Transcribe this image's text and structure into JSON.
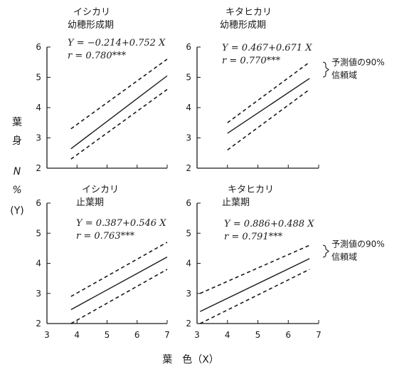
{
  "y_axis_label": [
    "葉",
    "身",
    "N",
    "%",
    "(Y)"
  ],
  "x_axis_label": "葉　色（X）",
  "chart_data": [
    {
      "type": "line",
      "title": [
        "イシカリ",
        "幼穂形成期"
      ],
      "equation": "Y = −0.214+0.752 X",
      "r": "r  = 0.780***",
      "bracket_note": "",
      "xlim": [
        3,
        7
      ],
      "ylim": [
        2,
        6
      ],
      "xticks": [
        "3",
        "4",
        "5",
        "6",
        "7"
      ],
      "yticks": [
        "2",
        "3",
        "4",
        "5",
        "6"
      ],
      "show_x_ticklabels": false,
      "x_range": [
        3.8,
        7.0
      ],
      "intercept": -0.214,
      "slope": 0.752,
      "band_upper": [
        [
          3.8,
          3.3
        ],
        [
          7.0,
          5.6
        ]
      ],
      "band_lower": [
        [
          3.8,
          2.3
        ],
        [
          7.0,
          4.6
        ]
      ]
    },
    {
      "type": "line",
      "title": [
        "キタヒカリ",
        "幼穂形成期"
      ],
      "equation": "Y = 0.467+0.671 X",
      "r": "r  = 0.770***",
      "bracket_note": [
        "予測値の90%",
        "信頼域"
      ],
      "xlim": [
        3,
        7
      ],
      "ylim": [
        2,
        6
      ],
      "xticks": [
        "3",
        "4",
        "5",
        "6",
        "7"
      ],
      "yticks": [
        "2",
        "3",
        "4",
        "5",
        "6"
      ],
      "show_x_ticklabels": false,
      "x_range": [
        4.0,
        6.7
      ],
      "intercept": 0.467,
      "slope": 0.671,
      "band_upper": [
        [
          4.0,
          3.5
        ],
        [
          6.7,
          5.5
        ]
      ],
      "band_lower": [
        [
          4.0,
          2.6
        ],
        [
          6.7,
          4.6
        ]
      ]
    },
    {
      "type": "line",
      "title": [
        "イシカリ",
        "止葉期"
      ],
      "equation": "Y = 0.387+0.546 X",
      "r": "r  = 0.763***",
      "bracket_note": "",
      "xlim": [
        3,
        7
      ],
      "ylim": [
        2,
        6
      ],
      "xticks": [
        "3",
        "4",
        "5",
        "6",
        "7"
      ],
      "yticks": [
        "2",
        "3",
        "4",
        "5",
        "6"
      ],
      "show_x_ticklabels": true,
      "x_range": [
        3.8,
        7.0
      ],
      "intercept": 0.387,
      "slope": 0.546,
      "band_upper": [
        [
          3.8,
          2.9
        ],
        [
          7.0,
          4.7
        ]
      ],
      "band_lower": [
        [
          3.8,
          2.0
        ],
        [
          7.0,
          3.8
        ]
      ]
    },
    {
      "type": "line",
      "title": [
        "キタヒカリ",
        "止葉期"
      ],
      "equation": "Y = 0.886+0.488 X",
      "r": "r  = 0.791***",
      "bracket_note": [
        "予測値の90%",
        "信頼域"
      ],
      "xlim": [
        3,
        7
      ],
      "ylim": [
        2,
        6
      ],
      "xticks": [
        "3",
        "4",
        "5",
        "6",
        "7"
      ],
      "yticks": [
        "2",
        "3",
        "4",
        "5",
        "6"
      ],
      "show_x_ticklabels": true,
      "x_range": [
        3.1,
        6.7
      ],
      "intercept": 0.886,
      "slope": 0.488,
      "band_upper": [
        [
          3.1,
          3.0
        ],
        [
          6.7,
          4.6
        ]
      ],
      "band_lower": [
        [
          3.1,
          2.0
        ],
        [
          6.7,
          3.8
        ]
      ]
    }
  ]
}
